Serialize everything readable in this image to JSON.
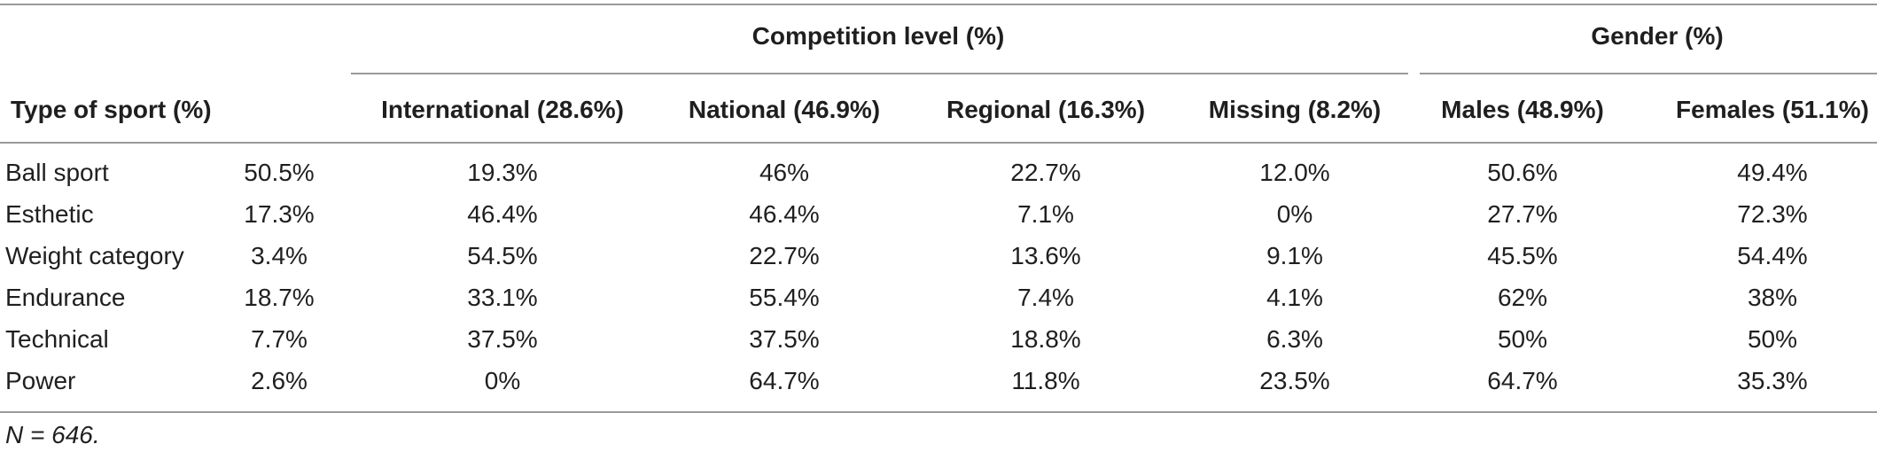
{
  "table": {
    "group_headers": {
      "competition": "Competition level (%)",
      "gender": "Gender (%)"
    },
    "column_headers": {
      "type_of_sport": "Type of sport (%)",
      "international": "International (28.6%)",
      "national": "National (46.9%)",
      "regional": "Regional (16.3%)",
      "missing": "Missing (8.2%)",
      "males": "Males (48.9%)",
      "females": "Females (51.1%)"
    },
    "rows": [
      {
        "sport": "Ball sport",
        "pct": "50.5%",
        "international": "19.3%",
        "national": "46%",
        "regional": "22.7%",
        "missing": "12.0%",
        "males": "50.6%",
        "females": "49.4%"
      },
      {
        "sport": "Esthetic",
        "pct": "17.3%",
        "international": "46.4%",
        "national": "46.4%",
        "regional": "7.1%",
        "missing": "0%",
        "males": "27.7%",
        "females": "72.3%"
      },
      {
        "sport": "Weight category",
        "pct": "3.4%",
        "international": "54.5%",
        "national": "22.7%",
        "regional": "13.6%",
        "missing": "9.1%",
        "males": "45.5%",
        "females": "54.4%"
      },
      {
        "sport": "Endurance",
        "pct": "18.7%",
        "international": "33.1%",
        "national": "55.4%",
        "regional": "7.4%",
        "missing": "4.1%",
        "males": "62%",
        "females": "38%"
      },
      {
        "sport": "Technical",
        "pct": "7.7%",
        "international": "37.5%",
        "national": "37.5%",
        "regional": "18.8%",
        "missing": "6.3%",
        "males": "50%",
        "females": "50%"
      },
      {
        "sport": "Power",
        "pct": "2.6%",
        "international": "0%",
        "national": "64.7%",
        "regional": "11.8%",
        "missing": "23.5%",
        "males": "64.7%",
        "females": "35.3%"
      }
    ],
    "footnote": "N = 646."
  }
}
